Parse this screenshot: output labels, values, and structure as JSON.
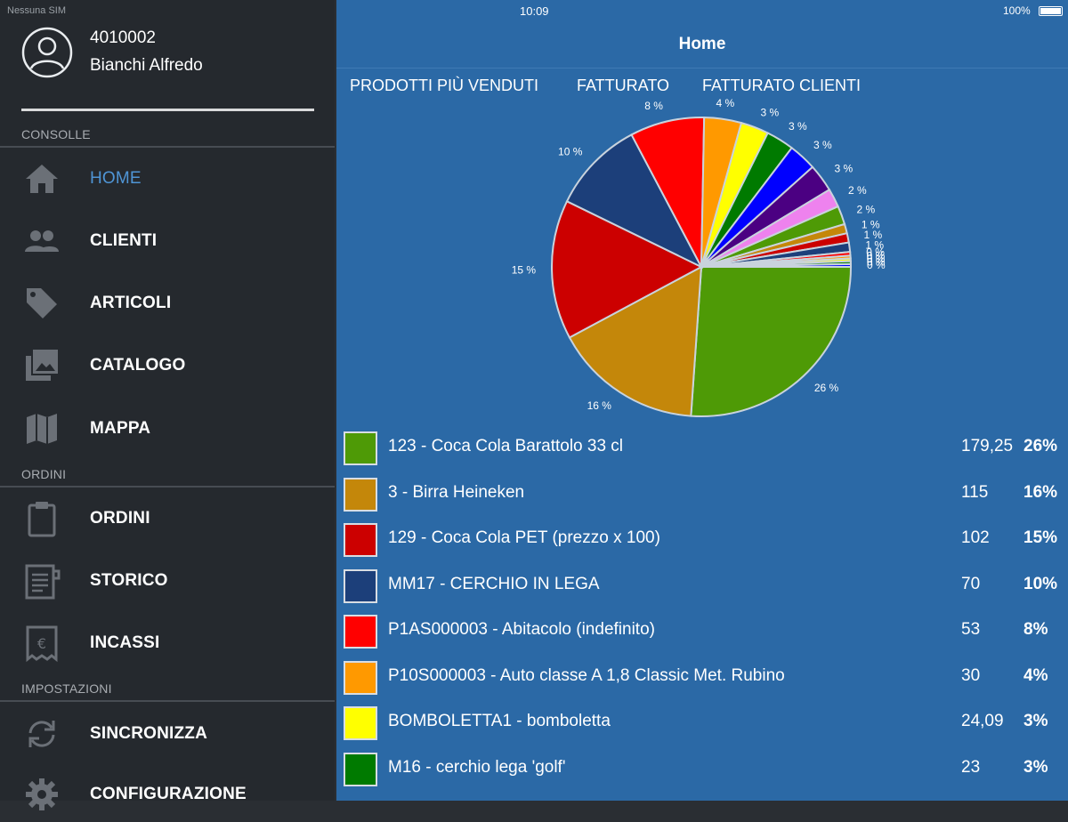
{
  "status_bar": {
    "carrier": "Nessuna SIM",
    "time": "10:09",
    "battery": "100%"
  },
  "sidebar": {
    "user": {
      "code": "4010002",
      "name": "Bianchi Alfredo"
    },
    "sections": [
      {
        "label": "CONSOLLE"
      },
      {
        "label": "ORDINI"
      },
      {
        "label": "IMPOSTAZIONI"
      }
    ],
    "items": [
      {
        "label": "HOME",
        "icon": "home-icon"
      },
      {
        "label": "CLIENTI",
        "icon": "people-icon"
      },
      {
        "label": "ARTICOLI",
        "icon": "tag-icon"
      },
      {
        "label": "CATALOGO",
        "icon": "gallery-icon"
      },
      {
        "label": "MAPPA",
        "icon": "map-icon"
      },
      {
        "label": "ORDINI",
        "icon": "clipboard-icon"
      },
      {
        "label": "STORICO",
        "icon": "document-icon"
      },
      {
        "label": "INCASSI",
        "icon": "euro-receipt-icon"
      },
      {
        "label": "SINCRONIZZA",
        "icon": "sync-icon"
      },
      {
        "label": "CONFIGURAZIONE",
        "icon": "gear-icon"
      }
    ],
    "active_item": "HOME"
  },
  "header": {
    "title": "Home"
  },
  "tabs": [
    {
      "label": "PRODOTTI PIÙ VENDUTI"
    },
    {
      "label": "FATTURATO"
    },
    {
      "label": "FATTURATO CLIENTI"
    }
  ],
  "products": [
    {
      "name": "123 - Coca Cola Barattolo 33 cl",
      "value": "179,25",
      "percent": "26%",
      "color": "#4e9a06"
    },
    {
      "name": "3 - Birra Heineken",
      "value": "115",
      "percent": "16%",
      "color": "#c4870a"
    },
    {
      "name": "129 - Coca Cola PET (prezzo x 100)",
      "value": "102",
      "percent": "15%",
      "color": "#cc0000"
    },
    {
      "name": "MM17 - CERCHIO IN LEGA",
      "value": "70",
      "percent": "10%",
      "color": "#1c3f7a"
    },
    {
      "name": "P1AS000003 - Abitacolo (indefinito)",
      "value": "53",
      "percent": "8%",
      "color": "#ff0000"
    },
    {
      "name": "P10S000003 - Auto classe A 1,8 Classic Met. Rubino",
      "value": "30",
      "percent": "4%",
      "color": "#ff9900"
    },
    {
      "name": "BOMBOLETTA1 - bomboletta",
      "value": "24,09",
      "percent": "3%",
      "color": "#ffff00"
    },
    {
      "name": "M16 - cerchio lega 'golf'",
      "value": "23",
      "percent": "3%",
      "color": "#007a00"
    }
  ],
  "chart_data": {
    "type": "pie",
    "slices": [
      {
        "label": "26 %",
        "value": 26,
        "color": "#4e9a06"
      },
      {
        "label": "16 %",
        "value": 16,
        "color": "#c4870a"
      },
      {
        "label": "15 %",
        "value": 15,
        "color": "#cc0000"
      },
      {
        "label": "10 %",
        "value": 10,
        "color": "#1c3f7a"
      },
      {
        "label": "8 %",
        "value": 8,
        "color": "#ff0000"
      },
      {
        "label": "4 %",
        "value": 4,
        "color": "#ff9900"
      },
      {
        "label": "3 %",
        "value": 3,
        "color": "#ffff00"
      },
      {
        "label": "3 %",
        "value": 3,
        "color": "#007a00"
      },
      {
        "label": "3 %",
        "value": 3,
        "color": "#0000ff"
      },
      {
        "label": "3 %",
        "value": 3,
        "color": "#4b0082"
      },
      {
        "label": "2 %",
        "value": 2,
        "color": "#ee82ee"
      },
      {
        "label": "2 %",
        "value": 2,
        "color": "#4e9a06"
      },
      {
        "label": "1 %",
        "value": 1,
        "color": "#c4870a"
      },
      {
        "label": "1 %",
        "value": 1,
        "color": "#cc0000"
      },
      {
        "label": "1 %",
        "value": 1,
        "color": "#1c3f7a"
      },
      {
        "label": "0 %",
        "value": 0.4,
        "color": "#ff0000"
      },
      {
        "label": "0 %",
        "value": 0.3,
        "color": "#ff9900"
      },
      {
        "label": "0 %",
        "value": 0.3,
        "color": "#ffff00"
      },
      {
        "label": "0 %",
        "value": 0.3,
        "color": "#007a00"
      },
      {
        "label": "0 %",
        "value": 0.3,
        "color": "#0000ff"
      }
    ]
  }
}
